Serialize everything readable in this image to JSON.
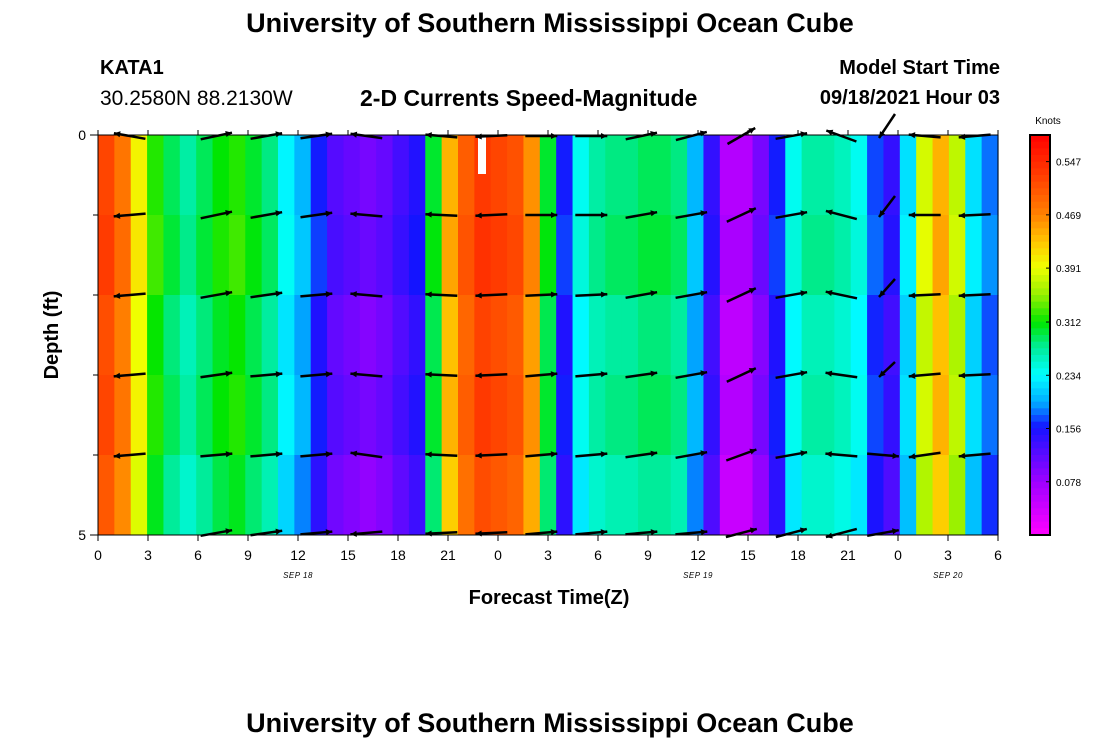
{
  "header": {
    "title": "University of Southern Mississippi Ocean Cube",
    "station": "KATA1",
    "coordinates": "30.2580N  88.2130W",
    "subtitle": "2-D Currents Speed-Magnitude",
    "model_start_label": "Model Start Time",
    "model_start_value": "09/18/2021 Hour 03"
  },
  "footer": {
    "title": "University of Southern Mississippi Ocean Cube"
  },
  "chart_data": {
    "type": "heatmap",
    "title": "2-D Currents Speed-Magnitude",
    "xlabel": "Forecast Time(Z)",
    "ylabel": "Depth (ft)",
    "xlim": [
      0,
      54
    ],
    "ylim": [
      0,
      5
    ],
    "x_ticks": [
      "0",
      "3",
      "6",
      "9",
      "12",
      "15",
      "18",
      "21",
      "0",
      "3",
      "6",
      "9",
      "12",
      "15",
      "18",
      "21",
      "0",
      "3",
      "6"
    ],
    "y_ticks": [
      "0",
      "5"
    ],
    "y_minor_ticks": [
      1,
      2,
      3,
      4
    ],
    "date_labels": [
      {
        "text": "SEP 18",
        "hour": 12
      },
      {
        "text": "SEP 19",
        "hour": 36
      },
      {
        "text": "SEP 20",
        "hour": 51
      }
    ],
    "colorbar": {
      "title": "Knots",
      "range": [
        0.0,
        0.586
      ],
      "ticks": [
        "0.547",
        "0.469",
        "0.391",
        "0.312",
        "0.234",
        "0.156",
        "0.078"
      ]
    },
    "speed_knots_by_hour": [
      0.52,
      0.48,
      0.4,
      0.32,
      0.29,
      0.27,
      0.29,
      0.31,
      0.32,
      0.3,
      0.28,
      0.23,
      0.2,
      0.16,
      0.12,
      0.11,
      0.1,
      0.11,
      0.13,
      0.15,
      0.3,
      0.44,
      0.5,
      0.53,
      0.52,
      0.51,
      0.46,
      0.3,
      0.16,
      0.24,
      0.27,
      0.28,
      0.28,
      0.29,
      0.29,
      0.28,
      0.2,
      0.14,
      0.06,
      0.06,
      0.1,
      0.16,
      0.24,
      0.27,
      0.27,
      0.26,
      0.24,
      0.17,
      0.14,
      0.22,
      0.38,
      0.44,
      0.37,
      0.22,
      0.18
    ],
    "vector_rows_depth_ft": [
      0,
      1,
      2,
      3,
      4,
      5
    ],
    "vector_angles_deg": [
      [
        -10,
        12,
        10,
        8,
        -8,
        -5,
        3,
        0,
        0,
        12,
        15,
        30,
        10,
        -20,
        -60,
        -5,
        5
      ],
      [
        5,
        12,
        10,
        8,
        -5,
        -3,
        3,
        0,
        0,
        10,
        10,
        25,
        10,
        -15,
        -55,
        0,
        3
      ],
      [
        5,
        10,
        8,
        5,
        -5,
        -3,
        3,
        3,
        3,
        10,
        10,
        25,
        10,
        -12,
        -40,
        3,
        3
      ],
      [
        5,
        8,
        5,
        5,
        -5,
        -3,
        3,
        5,
        5,
        8,
        10,
        25,
        10,
        -8,
        -25,
        5,
        3
      ],
      [
        5,
        5,
        5,
        5,
        -8,
        -3,
        3,
        5,
        5,
        8,
        10,
        20,
        10,
        -5,
        -5,
        8,
        5
      ],
      [
        5,
        10,
        8,
        5,
        5,
        3,
        3,
        5,
        5,
        5,
        5,
        15,
        15,
        15,
        10,
        5,
        5
      ]
    ]
  }
}
